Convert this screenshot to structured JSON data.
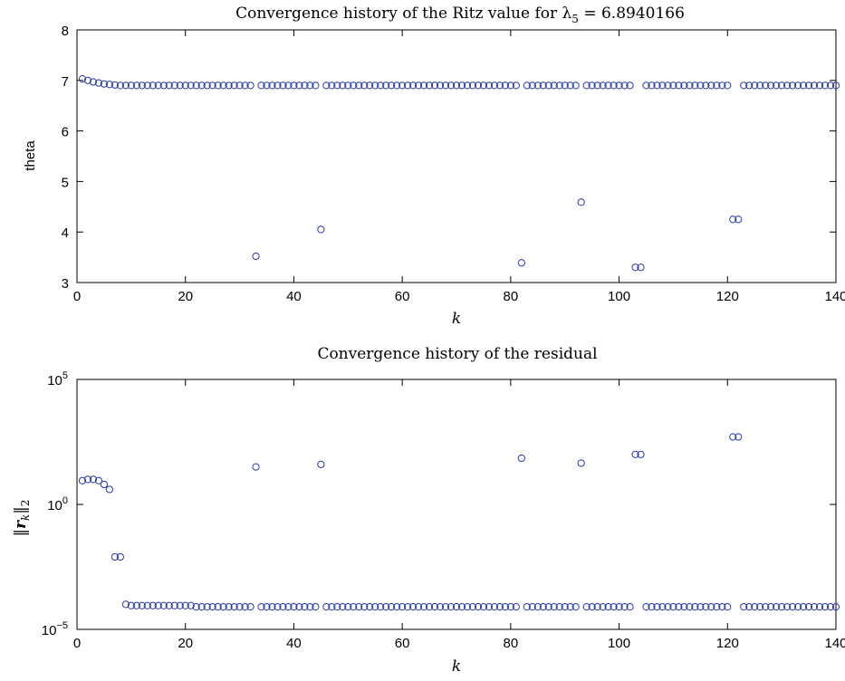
{
  "chart_data": [
    {
      "type": "scatter",
      "title": "Convergence history of the Ritz value for λ",
      "title_sub": "5",
      "title_tail": " = 6.8940166",
      "xlabel": "k",
      "ylabel": "theta",
      "xlim": [
        0,
        140
      ],
      "ylim": [
        3,
        8
      ],
      "xticks": [
        0,
        20,
        40,
        60,
        80,
        100,
        120,
        140
      ],
      "yticks": [
        3,
        4,
        5,
        6,
        7,
        8
      ],
      "yscale": "linear",
      "marker": "open-circle",
      "color": "#2a3a9a",
      "x": [
        1,
        2,
        3,
        4,
        5,
        6,
        7,
        8,
        9,
        10,
        11,
        12,
        13,
        14,
        15,
        16,
        17,
        18,
        19,
        20,
        21,
        22,
        23,
        24,
        25,
        26,
        27,
        28,
        29,
        30,
        31,
        32,
        33,
        34,
        35,
        36,
        37,
        38,
        39,
        40,
        41,
        42,
        43,
        44,
        45,
        46,
        47,
        48,
        49,
        50,
        51,
        52,
        53,
        54,
        55,
        56,
        57,
        58,
        59,
        60,
        61,
        62,
        63,
        64,
        65,
        66,
        67,
        68,
        69,
        70,
        71,
        72,
        73,
        74,
        75,
        76,
        77,
        78,
        79,
        80,
        81,
        82,
        83,
        84,
        85,
        86,
        87,
        88,
        89,
        90,
        91,
        92,
        93,
        94,
        95,
        96,
        97,
        98,
        99,
        100,
        101,
        102,
        103,
        104,
        105,
        106,
        107,
        108,
        109,
        110,
        111,
        112,
        113,
        114,
        115,
        116,
        117,
        118,
        119,
        120,
        121,
        122,
        123,
        124,
        125,
        126,
        127,
        128,
        129,
        130,
        131,
        132,
        133,
        134,
        135,
        136,
        137,
        138,
        139,
        140
      ],
      "y": [
        7.03,
        7.0,
        6.97,
        6.95,
        6.93,
        6.92,
        6.91,
        6.9,
        6.9,
        6.9,
        6.9,
        6.9,
        6.9,
        6.9,
        6.9,
        6.9,
        6.9,
        6.9,
        6.9,
        6.9,
        6.9,
        6.9,
        6.9,
        6.9,
        6.9,
        6.9,
        6.9,
        6.9,
        6.9,
        6.9,
        6.9,
        6.9,
        3.52,
        6.9,
        6.9,
        6.9,
        6.9,
        6.9,
        6.9,
        6.9,
        6.9,
        6.9,
        6.9,
        6.9,
        4.05,
        6.9,
        6.9,
        6.9,
        6.9,
        6.9,
        6.9,
        6.9,
        6.9,
        6.9,
        6.9,
        6.9,
        6.9,
        6.9,
        6.9,
        6.9,
        6.9,
        6.9,
        6.9,
        6.9,
        6.9,
        6.9,
        6.9,
        6.9,
        6.9,
        6.9,
        6.9,
        6.9,
        6.9,
        6.9,
        6.9,
        6.9,
        6.9,
        6.9,
        6.9,
        6.9,
        6.9,
        3.39,
        6.9,
        6.9,
        6.9,
        6.9,
        6.9,
        6.9,
        6.9,
        6.9,
        6.9,
        6.9,
        4.59,
        6.9,
        6.9,
        6.9,
        6.9,
        6.9,
        6.9,
        6.9,
        6.9,
        6.9,
        3.3,
        3.3,
        6.9,
        6.9,
        6.9,
        6.9,
        6.9,
        6.9,
        6.9,
        6.9,
        6.9,
        6.9,
        6.9,
        6.9,
        6.9,
        6.9,
        6.9,
        6.9,
        4.25,
        4.25,
        6.9,
        6.9,
        6.9,
        6.9,
        6.9,
        6.9,
        6.9,
        6.9,
        6.9,
        6.9,
        6.9,
        6.9,
        6.9,
        6.9,
        6.9,
        6.9,
        6.9,
        6.9
      ]
    },
    {
      "type": "scatter",
      "title": "Convergence history of the residual",
      "xlabel": "k",
      "ylabel": "||r_k||_2",
      "xlim": [
        0,
        140
      ],
      "ylim": [
        -5,
        5
      ],
      "yscale": "log",
      "xticks": [
        0,
        20,
        40,
        60,
        80,
        100,
        120,
        140
      ],
      "yticks_exp": [
        -5,
        0,
        5
      ],
      "marker": "open-circle",
      "color": "#2a3a9a",
      "x": [
        1,
        2,
        3,
        4,
        5,
        6,
        7,
        8,
        9,
        10,
        11,
        12,
        13,
        14,
        15,
        16,
        17,
        18,
        19,
        20,
        21,
        22,
        23,
        24,
        25,
        26,
        27,
        28,
        29,
        30,
        31,
        32,
        33,
        34,
        35,
        36,
        37,
        38,
        39,
        40,
        41,
        42,
        43,
        44,
        45,
        46,
        47,
        48,
        49,
        50,
        51,
        52,
        53,
        54,
        55,
        56,
        57,
        58,
        59,
        60,
        61,
        62,
        63,
        64,
        65,
        66,
        67,
        68,
        69,
        70,
        71,
        72,
        73,
        74,
        75,
        76,
        77,
        78,
        79,
        80,
        81,
        82,
        83,
        84,
        85,
        86,
        87,
        88,
        89,
        90,
        91,
        92,
        93,
        94,
        95,
        96,
        97,
        98,
        99,
        100,
        101,
        102,
        103,
        104,
        105,
        106,
        107,
        108,
        109,
        110,
        111,
        112,
        113,
        114,
        115,
        116,
        117,
        118,
        119,
        120,
        121,
        122,
        123,
        124,
        125,
        126,
        127,
        128,
        129,
        130,
        131,
        132,
        133,
        134,
        135,
        136,
        137,
        138,
        139,
        140
      ],
      "log10_y": [
        0.95,
        1.0,
        1.0,
        0.95,
        0.8,
        0.6,
        -2.1,
        -2.1,
        -4.0,
        -4.05,
        -4.05,
        -4.05,
        -4.05,
        -4.05,
        -4.05,
        -4.05,
        -4.05,
        -4.05,
        -4.05,
        -4.05,
        -4.05,
        -4.1,
        -4.1,
        -4.1,
        -4.1,
        -4.1,
        -4.1,
        -4.1,
        -4.1,
        -4.1,
        -4.1,
        -4.1,
        1.5,
        -4.1,
        -4.1,
        -4.1,
        -4.1,
        -4.1,
        -4.1,
        -4.1,
        -4.1,
        -4.1,
        -4.1,
        -4.1,
        1.6,
        -4.1,
        -4.1,
        -4.1,
        -4.1,
        -4.1,
        -4.1,
        -4.1,
        -4.1,
        -4.1,
        -4.1,
        -4.1,
        -4.1,
        -4.1,
        -4.1,
        -4.1,
        -4.1,
        -4.1,
        -4.1,
        -4.1,
        -4.1,
        -4.1,
        -4.1,
        -4.1,
        -4.1,
        -4.1,
        -4.1,
        -4.1,
        -4.1,
        -4.1,
        -4.1,
        -4.1,
        -4.1,
        -4.1,
        -4.1,
        -4.1,
        -4.1,
        1.85,
        -4.1,
        -4.1,
        -4.1,
        -4.1,
        -4.1,
        -4.1,
        -4.1,
        -4.1,
        -4.1,
        -4.1,
        1.65,
        -4.1,
        -4.1,
        -4.1,
        -4.1,
        -4.1,
        -4.1,
        -4.1,
        -4.1,
        -4.1,
        2.0,
        2.0,
        -4.1,
        -4.1,
        -4.1,
        -4.1,
        -4.1,
        -4.1,
        -4.1,
        -4.1,
        -4.1,
        -4.1,
        -4.1,
        -4.1,
        -4.1,
        -4.1,
        -4.1,
        -4.1,
        2.7,
        2.7,
        -4.1,
        -4.1,
        -4.1,
        -4.1,
        -4.1,
        -4.1,
        -4.1,
        -4.1,
        -4.1,
        -4.1,
        -4.1,
        -4.1,
        -4.1,
        -4.1,
        -4.1,
        -4.1,
        -4.1,
        -4.1
      ]
    }
  ]
}
